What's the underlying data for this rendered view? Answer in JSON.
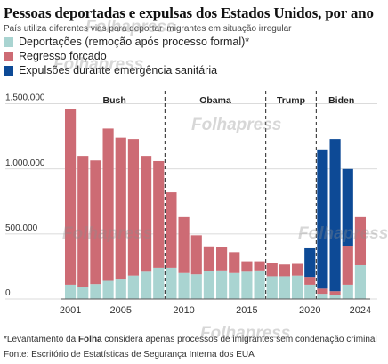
{
  "title": "Pessoas deportadas e expulsas dos Estados Unidos, por ano",
  "subtitle": "País utiliza diferentes vias para deportar imigrantes em situação irregular",
  "legend": [
    {
      "label": "Deportações (remoção após processo formal)*",
      "color": "#a9d4d1"
    },
    {
      "label": "Regresso forçado",
      "color": "#cd6b74"
    },
    {
      "label": "Expulsões durante emergência sanitária",
      "color": "#0d4a96"
    }
  ],
  "footnote_prefix": "*Levantamento da ",
  "footnote_bold": "Folha",
  "footnote_suffix": " considera apenas processos de imigrantes sem condenação criminal",
  "source": "Fonte: Escritório de Estatísticas de Segurança Interna dos EUA",
  "watermarks": [
    "Folhapress",
    "Folhapress",
    "Folhapress",
    "Folhapress",
    "Folhapress",
    "Folhapress"
  ],
  "chart_data": {
    "type": "bar",
    "stacked": true,
    "categories": [
      "2001",
      "2002",
      "2003",
      "2004",
      "2005",
      "2006",
      "2007",
      "2008",
      "2009",
      "2010",
      "2011",
      "2012",
      "2013",
      "2014",
      "2015",
      "2016",
      "2017",
      "2018",
      "2019",
      "2020",
      "2021",
      "2022",
      "2023",
      "2024"
    ],
    "x_ticks": [
      "2001",
      "2005",
      "2010",
      "2015",
      "2020",
      "2024"
    ],
    "series": [
      {
        "name": "Deportações (remoção após processo formal)*",
        "color": "#a9d4d1",
        "values": [
          110000,
          90000,
          115000,
          140000,
          150000,
          180000,
          210000,
          240000,
          240000,
          200000,
          190000,
          215000,
          220000,
          200000,
          210000,
          220000,
          175000,
          175000,
          180000,
          110000,
          40000,
          30000,
          110000,
          260000
        ]
      },
      {
        "name": "Regresso forçado",
        "color": "#cd6b74",
        "values": [
          1350000,
          1010000,
          950000,
          1170000,
          1090000,
          1050000,
          890000,
          820000,
          580000,
          430000,
          300000,
          190000,
          180000,
          160000,
          80000,
          70000,
          100000,
          90000,
          90000,
          60000,
          40000,
          30000,
          300000,
          370000
        ]
      },
      {
        "name": "Expulsões durante emergência sanitária",
        "color": "#0d4a96",
        "values": [
          0,
          0,
          0,
          0,
          0,
          0,
          0,
          0,
          0,
          0,
          0,
          0,
          0,
          0,
          0,
          0,
          0,
          0,
          0,
          220000,
          1070000,
          1170000,
          590000,
          0
        ]
      }
    ],
    "y_ticks": [
      "0",
      "500.000",
      "1.000.000",
      "1.500.000"
    ],
    "y_tick_values": [
      0,
      500000,
      1000000,
      1500000
    ],
    "ylim": [
      0,
      1600000
    ],
    "periods": [
      {
        "label": "Bush",
        "start": "2001",
        "end": "2008"
      },
      {
        "label": "Obama",
        "start": "2009",
        "end": "2016"
      },
      {
        "label": "Trump",
        "start": "2017",
        "end": "2020"
      },
      {
        "label": "Biden",
        "start": "2021",
        "end": "2024"
      }
    ],
    "grid": true
  }
}
